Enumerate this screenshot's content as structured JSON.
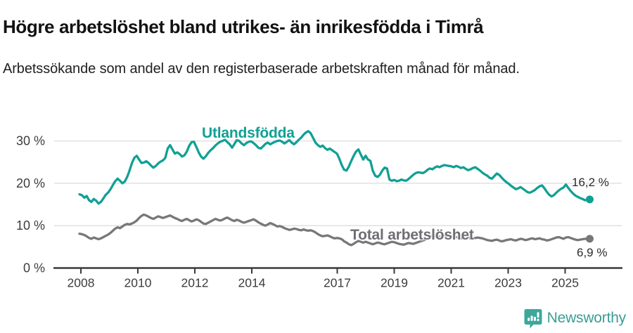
{
  "header": {
    "title": "Högre arbetslöshet bland utrikes- än inrikesfödda i Timrå",
    "subtitle": "Arbetssökande som andel av den registerbaserade arbetskraften månad för månad."
  },
  "colors": {
    "accent_teal": "#11a094",
    "series_gray": "#77777b",
    "grid": "#dcdcdc",
    "axis": "#3a3a3a",
    "tick_text": "#3d3d3d",
    "brand_teal": "#3a9e94"
  },
  "chart_data": {
    "type": "line",
    "title": "Högre arbetslöshet bland utrikes- än inrikesfödda i Timrå",
    "xlabel": "",
    "ylabel": "",
    "x_unit": "month",
    "x_start": "2008-01",
    "x_end": "2025-11",
    "ylim": [
      0,
      34
    ],
    "grid": "horizontal",
    "legend_position": "inline-labels",
    "x_ticks": [
      2008,
      2010,
      2012,
      2014,
      2017,
      2019,
      2021,
      2023,
      2025
    ],
    "x_tick_labels": [
      "2008",
      "2010",
      "2012",
      "2014",
      "2017",
      "2019",
      "2021",
      "2023",
      "2025"
    ],
    "y_ticks": [
      0,
      10,
      20,
      30
    ],
    "y_tick_labels": [
      "0 %",
      "10 %",
      "20 %",
      "30 %"
    ],
    "series": [
      {
        "name": "Utlandsfödda",
        "color": "#11a094",
        "end_label": "16,2 %",
        "end_value": 16.2,
        "values": [
          17.4,
          17.2,
          16.6,
          17.0,
          16.0,
          15.6,
          16.3,
          15.9,
          15.2,
          15.6,
          16.4,
          17.3,
          17.8,
          18.6,
          19.6,
          20.5,
          21.1,
          20.6,
          20.0,
          20.4,
          21.5,
          23.0,
          24.8,
          26.0,
          26.5,
          25.6,
          24.8,
          24.9,
          25.2,
          24.8,
          24.2,
          23.7,
          24.1,
          24.7,
          25.1,
          25.4,
          26.0,
          28.2,
          29.0,
          28.0,
          27.0,
          27.3,
          26.9,
          26.3,
          26.6,
          27.5,
          28.8,
          29.7,
          29.8,
          28.6,
          27.3,
          26.3,
          25.8,
          26.4,
          27.2,
          27.8,
          28.3,
          28.9,
          29.4,
          29.8,
          30.0,
          30.3,
          29.7,
          29.2,
          28.4,
          29.3,
          30.2,
          30.0,
          29.4,
          29.0,
          29.5,
          29.8,
          29.9,
          29.5,
          29.0,
          28.4,
          28.2,
          28.7,
          29.3,
          29.6,
          29.2,
          29.5,
          29.8,
          30.0,
          30.1,
          29.8,
          29.4,
          29.8,
          30.2,
          29.6,
          29.2,
          29.7,
          30.3,
          30.8,
          31.5,
          32.0,
          32.3,
          31.8,
          30.7,
          29.6,
          29.0,
          28.6,
          28.9,
          28.3,
          27.9,
          28.2,
          27.8,
          27.4,
          27.0,
          25.8,
          24.3,
          23.2,
          23.0,
          24.0,
          25.3,
          26.5,
          27.5,
          28.0,
          26.8,
          25.6,
          26.5,
          25.6,
          25.3,
          23.0,
          21.8,
          21.5,
          22.0,
          23.0,
          23.7,
          23.5,
          20.9,
          20.6,
          20.8,
          20.5,
          20.6,
          20.9,
          20.7,
          20.6,
          21.0,
          21.5,
          22.0,
          22.4,
          22.6,
          22.5,
          22.4,
          22.7,
          23.2,
          23.5,
          23.3,
          23.7,
          24.0,
          23.8,
          24.1,
          24.3,
          24.2,
          24.1,
          24.0,
          23.8,
          24.1,
          23.9,
          23.6,
          23.8,
          23.4,
          23.1,
          23.3,
          23.6,
          23.8,
          23.4,
          23.0,
          22.5,
          22.1,
          21.8,
          21.3,
          21.1,
          21.7,
          22.3,
          22.0,
          21.4,
          20.8,
          20.3,
          19.9,
          19.4,
          19.0,
          18.6,
          18.8,
          19.1,
          18.7,
          18.3,
          17.9,
          17.8,
          18.1,
          18.4,
          18.9,
          19.3,
          19.5,
          18.8,
          18.0,
          17.3,
          16.9,
          17.2,
          17.8,
          18.3,
          18.7,
          19.0,
          19.7,
          18.9,
          18.2,
          17.6,
          17.1,
          16.8,
          16.5,
          16.3,
          16.0,
          16.1,
          16.2
        ]
      },
      {
        "name": "Total arbetslöshet",
        "color": "#77777b",
        "end_label": "6,9 %",
        "end_value": 6.9,
        "values": [
          8.1,
          8.0,
          7.8,
          7.5,
          7.1,
          6.9,
          7.2,
          7.0,
          6.8,
          7.0,
          7.3,
          7.6,
          7.9,
          8.3,
          8.8,
          9.3,
          9.6,
          9.4,
          9.8,
          10.2,
          10.4,
          10.3,
          10.5,
          10.8,
          11.2,
          11.8,
          12.3,
          12.6,
          12.4,
          12.1,
          11.8,
          11.6,
          11.9,
          12.2,
          12.0,
          11.8,
          12.0,
          12.2,
          12.4,
          12.1,
          11.8,
          11.6,
          11.3,
          11.1,
          11.4,
          11.6,
          11.3,
          11.0,
          11.2,
          11.5,
          11.3,
          10.9,
          10.5,
          10.4,
          10.7,
          11.0,
          11.3,
          11.6,
          11.4,
          11.2,
          11.4,
          11.7,
          11.9,
          11.6,
          11.3,
          11.1,
          11.4,
          11.2,
          10.9,
          10.7,
          10.9,
          11.1,
          11.3,
          11.5,
          11.2,
          10.8,
          10.5,
          10.2,
          10.0,
          10.3,
          10.6,
          10.4,
          10.1,
          9.8,
          9.9,
          9.7,
          9.4,
          9.2,
          9.0,
          9.1,
          9.3,
          9.2,
          9.0,
          8.9,
          9.1,
          8.9,
          8.8,
          8.9,
          8.7,
          8.4,
          8.0,
          7.7,
          7.5,
          7.6,
          7.7,
          7.5,
          7.2,
          7.0,
          7.1,
          7.0,
          6.8,
          6.3,
          6.0,
          5.6,
          5.4,
          5.7,
          6.1,
          6.4,
          6.2,
          6.0,
          6.2,
          6.0,
          5.8,
          5.6,
          5.8,
          6.0,
          5.9,
          5.7,
          5.6,
          5.8,
          6.0,
          6.2,
          6.1,
          5.9,
          5.7,
          5.6,
          5.5,
          5.7,
          5.9,
          5.8,
          5.7,
          5.9,
          6.1,
          6.3,
          6.5,
          6.7,
          7.0,
          7.4,
          7.6,
          7.5,
          7.6,
          7.4,
          7.3,
          7.5,
          7.4,
          7.5,
          7.4,
          7.5,
          7.3,
          7.2,
          7.0,
          7.1,
          7.3,
          7.2,
          7.0,
          6.9,
          7.1,
          7.2,
          7.1,
          7.0,
          6.8,
          6.6,
          6.5,
          6.4,
          6.6,
          6.7,
          6.5,
          6.3,
          6.4,
          6.6,
          6.7,
          6.8,
          6.6,
          6.5,
          6.7,
          6.9,
          6.8,
          6.6,
          6.7,
          6.9,
          7.0,
          6.8,
          6.9,
          7.0,
          6.8,
          6.7,
          6.5,
          6.6,
          6.8,
          7.0,
          7.2,
          7.3,
          7.1,
          6.9,
          7.2,
          7.3,
          7.1,
          6.9,
          6.7,
          6.6,
          6.7,
          6.8,
          6.9,
          6.8,
          6.9
        ]
      }
    ]
  },
  "footer": {
    "brand": "Newsworthy",
    "logo_icon": "bar-chart-speech-bubble-icon"
  }
}
